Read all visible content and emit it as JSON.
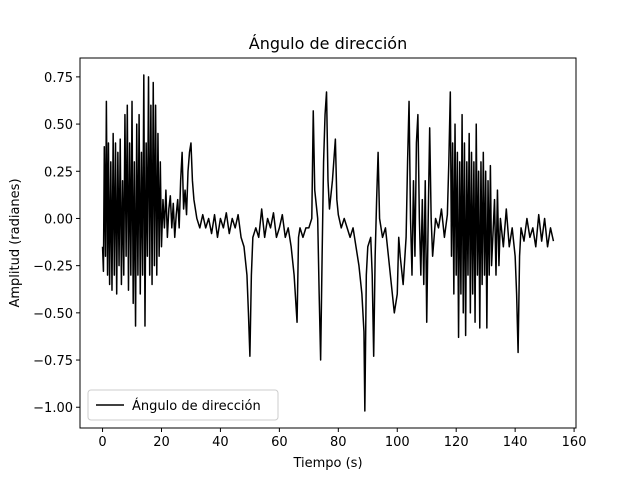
{
  "chart_data": {
    "type": "line",
    "title": "Ángulo de dirección",
    "xlabel": "Tiempo (s)",
    "ylabel": "Amplitud (radianes)",
    "x": [
      0,
      0.3,
      0.6,
      1,
      1.3,
      1.7,
      2,
      2.4,
      2.8,
      3.2,
      3.6,
      4,
      4.4,
      4.8,
      5.2,
      5.6,
      6,
      6.4,
      6.8,
      7.2,
      7.6,
      8,
      8.4,
      8.8,
      9.2,
      9.6,
      10,
      10.4,
      10.8,
      11.2,
      11.6,
      12,
      12.4,
      12.8,
      13.2,
      13.6,
      14,
      14.4,
      14.8,
      15.2,
      15.6,
      16,
      16.4,
      16.8,
      17.2,
      17.6,
      18,
      18.4,
      18.8,
      19.2,
      19.6,
      20,
      20.5,
      21,
      21.5,
      22,
      22.5,
      23,
      23.5,
      24,
      24.5,
      25,
      25.5,
      26,
      26.5,
      27,
      27.5,
      28,
      28.5,
      29,
      29.5,
      30,
      30.5,
      31,
      32,
      33,
      34,
      35,
      36,
      37,
      38,
      39,
      40,
      41,
      42,
      43,
      44,
      45,
      46,
      47,
      48,
      49,
      49.5,
      50,
      50.5,
      51,
      52,
      53,
      54,
      55,
      56,
      57,
      58,
      59,
      60,
      61,
      62,
      63,
      64,
      65,
      66,
      66.5,
      67,
      68,
      69,
      70,
      71,
      71.5,
      72,
      73,
      73.5,
      74,
      74.5,
      75,
      75.5,
      76,
      76.5,
      77,
      78,
      79,
      79.5,
      80,
      81,
      82,
      83,
      84,
      85,
      86,
      87,
      88,
      88.7,
      89,
      89.5,
      90,
      91,
      91.5,
      92,
      92.5,
      93,
      93.5,
      94,
      95,
      96,
      97,
      98,
      99,
      100,
      100.5,
      101,
      102,
      103,
      103.5,
      104,
      104.5,
      105,
      105.5,
      106,
      106.5,
      107,
      107.5,
      108,
      108.5,
      109,
      109.5,
      110,
      110.5,
      111,
      111.5,
      112,
      113,
      114,
      115,
      116,
      117,
      117.5,
      118,
      118.4,
      118.8,
      119.2,
      119.6,
      120,
      120.4,
      120.8,
      121.2,
      121.6,
      122,
      122.4,
      122.8,
      123.2,
      123.6,
      124,
      124.4,
      124.8,
      125.2,
      125.6,
      126,
      126.4,
      126.8,
      127.2,
      127.6,
      128,
      128.4,
      128.8,
      129.2,
      129.6,
      130,
      130.4,
      130.8,
      131.2,
      131.6,
      132,
      133,
      133.5,
      134,
      134.5,
      135,
      136,
      137,
      138,
      139,
      140,
      140.5,
      141,
      141.5,
      142,
      143,
      144,
      145,
      146,
      147,
      148,
      149,
      150,
      151,
      152,
      153
    ],
    "series": [
      {
        "name": "Ángulo de dirección",
        "color": "#000000",
        "values": [
          -0.15,
          -0.28,
          0.38,
          -0.2,
          0.62,
          -0.3,
          0.4,
          -0.35,
          0.3,
          -0.38,
          0.45,
          -0.3,
          0.4,
          -0.4,
          0.35,
          -0.25,
          0.42,
          -0.35,
          0.2,
          -0.3,
          0.55,
          -0.2,
          0.6,
          -0.38,
          0.4,
          -0.3,
          0.62,
          -0.45,
          0.3,
          -0.57,
          0.5,
          -0.3,
          0.55,
          -0.4,
          0.35,
          -0.3,
          0.76,
          -0.57,
          0.4,
          -0.2,
          0.75,
          -0.3,
          0.6,
          -0.35,
          0.72,
          -0.25,
          0.6,
          -0.3,
          0.45,
          -0.2,
          0.3,
          -0.15,
          0.1,
          -0.05,
          0.15,
          -0.1,
          0.05,
          0.12,
          -0.05,
          0.08,
          -0.1,
          0.02,
          0.1,
          -0.05,
          0.2,
          0.35,
          0.05,
          0.15,
          0.02,
          0.25,
          0.35,
          0.4,
          0.2,
          0.1,
          0.0,
          -0.05,
          0.02,
          -0.05,
          0.0,
          -0.08,
          0.02,
          -0.1,
          0.0,
          -0.05,
          0.03,
          -0.08,
          0.0,
          -0.05,
          0.02,
          -0.1,
          -0.15,
          -0.3,
          -0.5,
          -0.73,
          -0.3,
          -0.1,
          -0.05,
          -0.1,
          0.05,
          -0.1,
          0.0,
          -0.05,
          0.03,
          -0.1,
          -0.05,
          0.02,
          -0.1,
          -0.05,
          -0.15,
          -0.3,
          -0.55,
          -0.1,
          -0.05,
          -0.1,
          -0.05,
          -0.05,
          0.0,
          0.57,
          0.15,
          0.0,
          -0.4,
          -0.75,
          -0.2,
          0.3,
          0.55,
          0.67,
          0.2,
          0.05,
          0.2,
          0.42,
          0.1,
          0.02,
          -0.05,
          0.0,
          -0.05,
          -0.1,
          -0.05,
          -0.15,
          -0.25,
          -0.4,
          -0.6,
          -1.02,
          -0.3,
          -0.15,
          -0.1,
          -0.3,
          -0.73,
          -0.2,
          0.1,
          0.35,
          0.0,
          -0.1,
          -0.05,
          -0.2,
          -0.35,
          -0.5,
          -0.4,
          -0.1,
          -0.2,
          -0.35,
          -0.1,
          0.3,
          0.62,
          0.0,
          -0.3,
          0.2,
          -0.2,
          0.4,
          0.55,
          0.0,
          -0.3,
          0.1,
          -0.35,
          0.2,
          -0.55,
          0.0,
          0.48,
          0.0,
          -0.2,
          0.0,
          -0.05,
          0.05,
          -0.1,
          0.02,
          0.3,
          0.67,
          -0.2,
          0.4,
          -0.4,
          0.5,
          -0.3,
          0.35,
          -0.63,
          0.3,
          -0.4,
          0.55,
          -0.5,
          0.4,
          -0.62,
          0.3,
          -0.3,
          0.45,
          -0.5,
          0.35,
          -0.4,
          0.3,
          -0.55,
          0.5,
          -0.3,
          0.25,
          -0.58,
          0.3,
          -0.35,
          0.35,
          -0.3,
          0.25,
          -0.58,
          0.2,
          -0.3,
          0.28,
          -0.25,
          0.1,
          -0.3,
          0.15,
          -0.25,
          0.0,
          -0.15,
          0.05,
          -0.15,
          -0.05,
          -0.2,
          -0.4,
          -0.71,
          -0.2,
          -0.05,
          -0.12,
          0.0,
          -0.1,
          -0.05,
          -0.15,
          0.02,
          -0.12,
          0.0,
          -0.15,
          -0.05,
          -0.12
        ]
      }
    ],
    "xlim": [
      -7.65,
      160.65
    ],
    "ylim": [
      -1.11,
      0.85
    ],
    "xticks": [
      0,
      20,
      40,
      60,
      80,
      100,
      120,
      140,
      160
    ],
    "yticks": [
      {
        "value": -1,
        "label": "−1.00"
      },
      {
        "value": -0.75,
        "label": "−0.75"
      },
      {
        "value": -0.5,
        "label": "−0.50"
      },
      {
        "value": -0.25,
        "label": "−0.25"
      },
      {
        "value": 0,
        "label": "0.00"
      },
      0.25,
      {
        "value": 0.5,
        "label": "0.50"
      },
      0.75
    ],
    "legend": "lower left",
    "grid": false
  }
}
